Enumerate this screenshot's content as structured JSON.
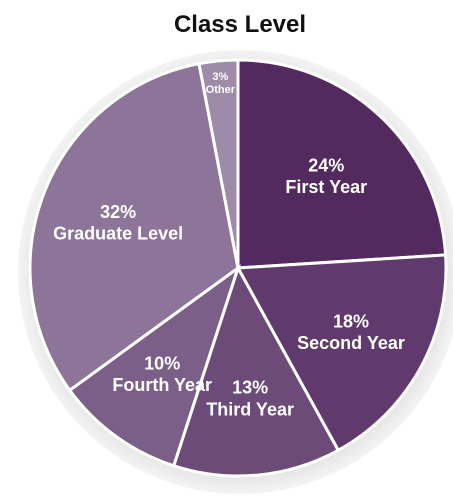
{
  "chart_data": {
    "type": "pie",
    "title": "Class Level",
    "categories": [
      "First Year",
      "Second Year",
      "Third Year",
      "Fourth Year",
      "Graduate Level",
      "Other"
    ],
    "values": [
      24,
      18,
      13,
      10,
      32,
      3
    ],
    "value_labels": [
      "24%",
      "18%",
      "13%",
      "10%",
      "32%",
      "3%"
    ],
    "colors": [
      "#522a5e",
      "#603a6c",
      "#6d4b78",
      "#7c5f88",
      "#8c7598",
      "#9d8ba8"
    ]
  }
}
